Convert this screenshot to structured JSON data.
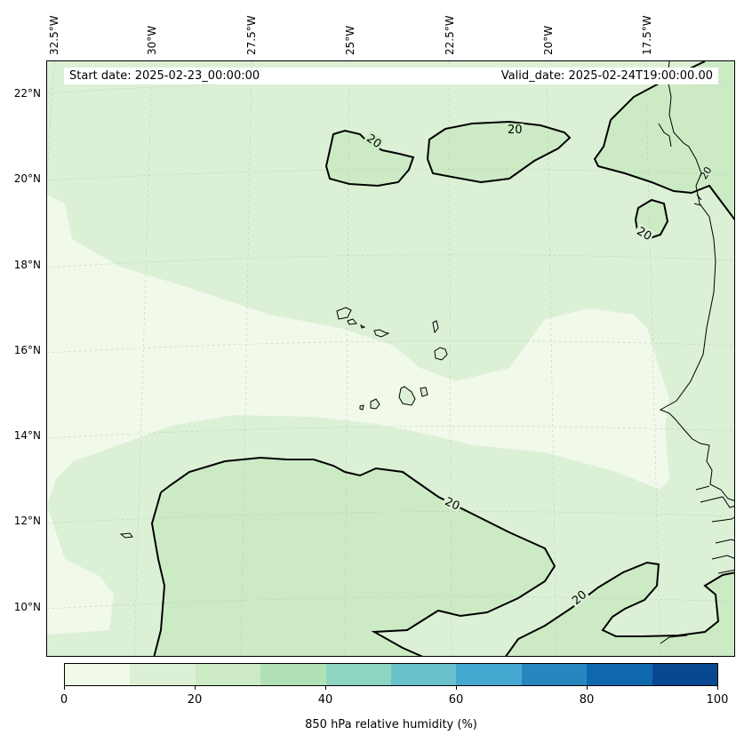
{
  "map": {
    "start_date": "Start date: 2025-02-23_00:00:00",
    "valid_date": "Valid_date: 2025-02-24T19:00:00.00",
    "lon_labels": [
      "32.5°W",
      "30°W",
      "27.5°W",
      "25°W",
      "22.5°W",
      "20°W",
      "17.5°W"
    ],
    "lat_labels": [
      "22°N",
      "20°N",
      "18°N",
      "16°N",
      "14°N",
      "12°N",
      "10°N"
    ],
    "contour_level": "20",
    "colorbar": {
      "label": "850 hPa relative humidity (%)",
      "ticks": [
        "0",
        "20",
        "40",
        "60",
        "80",
        "100"
      ],
      "colors": [
        "#f0f9ea",
        "#dcf0d6",
        "#ccebc5",
        "#b0e0b6",
        "#8ed4c0",
        "#69c1cc",
        "#45a8d1",
        "#2886bf",
        "#0f68ae",
        "#084891"
      ]
    }
  }
}
